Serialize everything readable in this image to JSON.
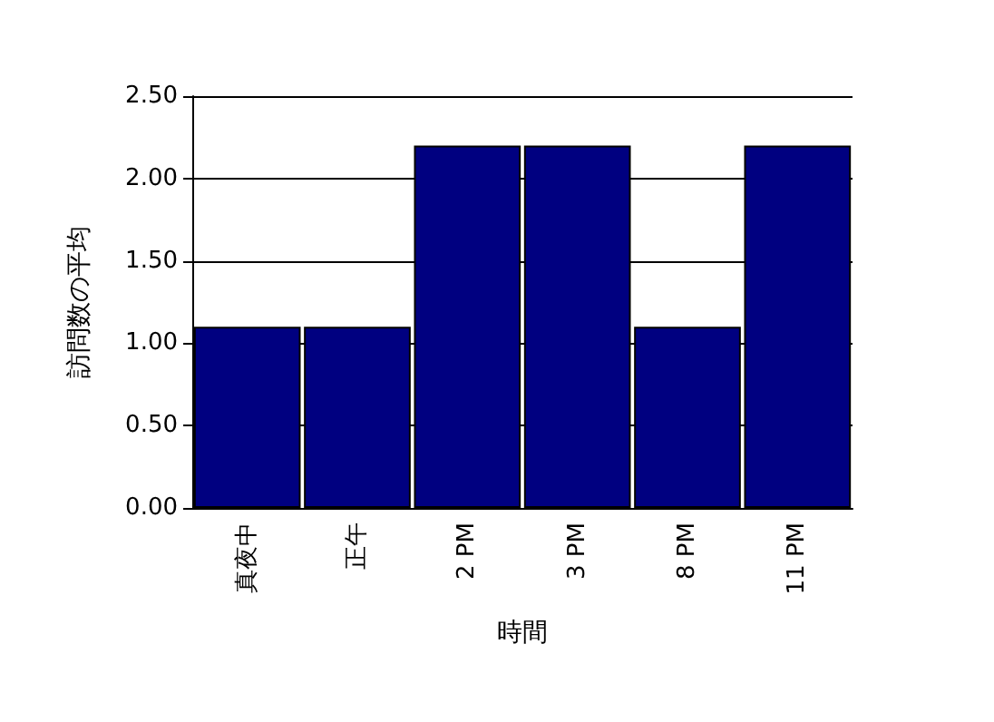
{
  "chart_data": {
    "type": "bar",
    "xlabel": "時間",
    "ylabel": "訪問数の平均",
    "categories": [
      "真夜中",
      "正午",
      "2 PM",
      "3 PM",
      "8 PM",
      "11 PM"
    ],
    "values": [
      1.1,
      1.1,
      2.2,
      2.2,
      1.1,
      2.2
    ],
    "color": "#000080",
    "ylim": [
      0,
      2.5
    ],
    "yticks": [
      {
        "value": 0,
        "label": "0.00"
      },
      {
        "value": 0.5,
        "label": "0.50"
      },
      {
        "value": 1,
        "label": "1.00"
      },
      {
        "value": 1.5,
        "label": "1.50"
      },
      {
        "value": 2,
        "label": "2.00"
      },
      {
        "value": 2.5,
        "label": "2.50"
      }
    ],
    "grid": "y"
  }
}
